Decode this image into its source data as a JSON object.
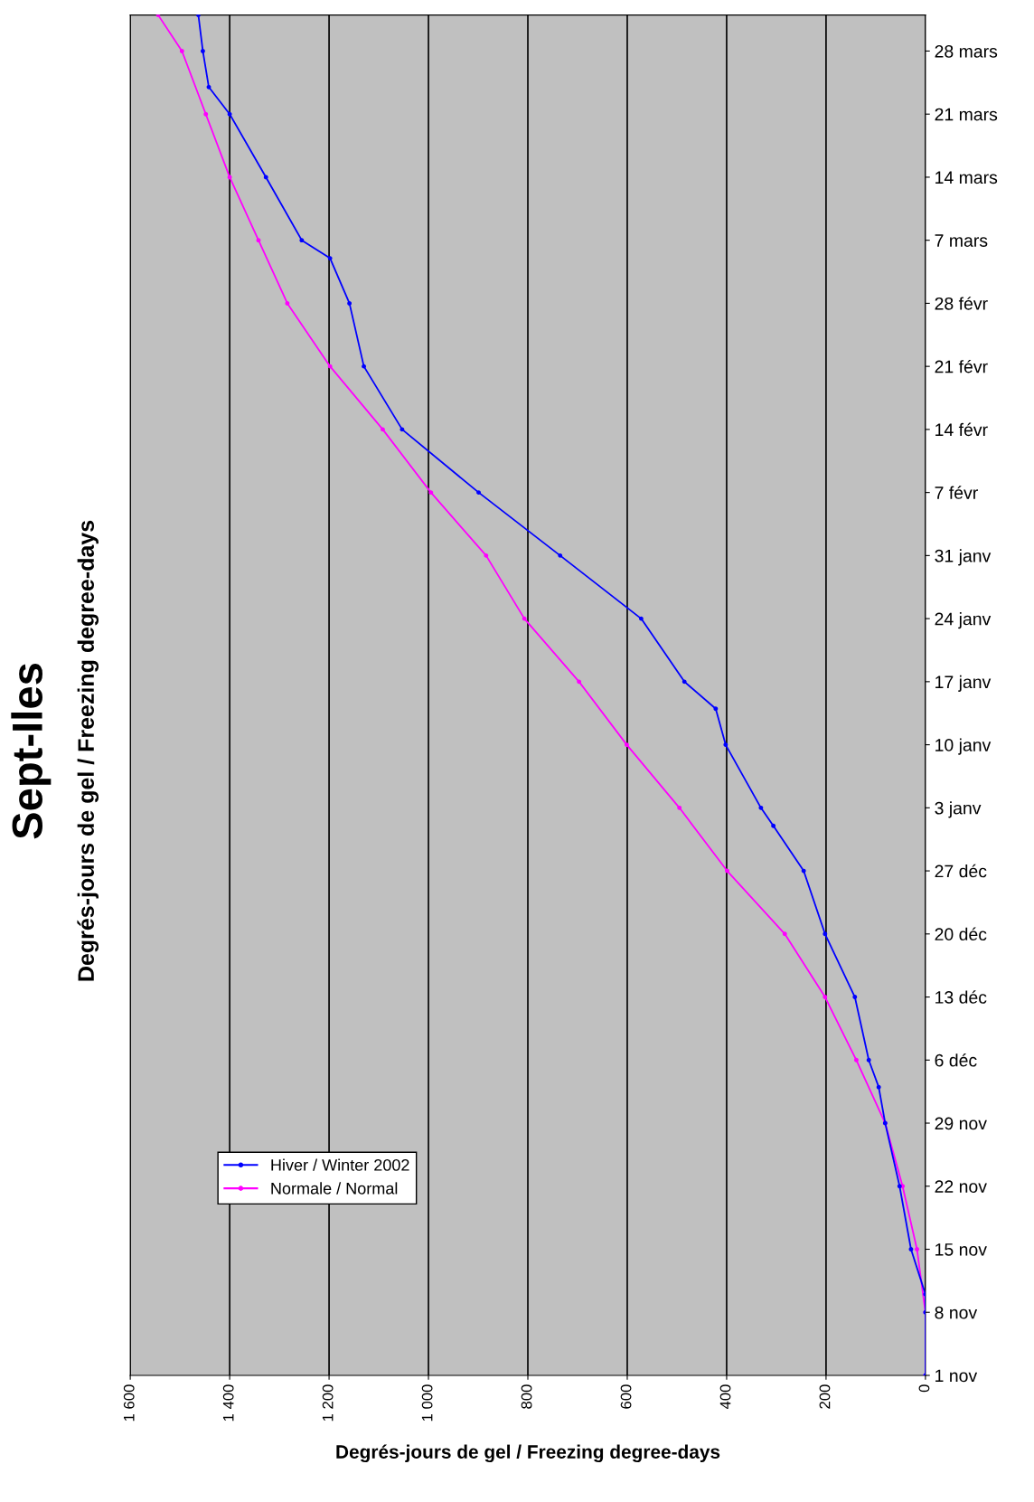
{
  "chart_data": {
    "type": "line",
    "title": "Sept-Iles",
    "subtitle": "Degrés-jours de gel / Freezing degree-days",
    "xlabel": "Degrés-jours de gel / Freezing degree-days",
    "orientation": "horizontal",
    "xlim": [
      1600,
      0
    ],
    "xticks": [
      {
        "value": 1600,
        "label": "1 600"
      },
      {
        "value": 1400,
        "label": "1 400"
      },
      {
        "value": 1200,
        "label": "1 200"
      },
      {
        "value": 1000,
        "label": "1 000"
      },
      800,
      600,
      400,
      200,
      0
    ],
    "ylim": [
      "2001-11-01",
      "2002-04-01"
    ],
    "yticks": [
      {
        "value": "2001-11-01",
        "label": "1 nov"
      },
      {
        "value": "2001-11-08",
        "label": "8 nov"
      },
      {
        "value": "2001-11-15",
        "label": "15 nov"
      },
      {
        "value": "2001-11-22",
        "label": "22 nov"
      },
      {
        "value": "2001-11-29",
        "label": "29 nov"
      },
      {
        "value": "2001-12-06",
        "label": "6 déc"
      },
      {
        "value": "2001-12-13",
        "label": "13 déc"
      },
      {
        "value": "2001-12-20",
        "label": "20 déc"
      },
      {
        "value": "2001-12-27",
        "label": "27 déc"
      },
      {
        "value": "2002-01-03",
        "label": "3 janv"
      },
      {
        "value": "2002-01-10",
        "label": "10 janv"
      },
      {
        "value": "2002-01-17",
        "label": "17 janv"
      },
      {
        "value": "2002-01-24",
        "label": "24 janv"
      },
      {
        "value": "2002-01-31",
        "label": "31 janv"
      },
      {
        "value": "2002-02-07",
        "label": "7 févr"
      },
      {
        "value": "2002-02-14",
        "label": "14 févr"
      },
      {
        "value": "2002-02-21",
        "label": "21 févr"
      },
      {
        "value": "2002-02-28",
        "label": "28 févr"
      },
      {
        "value": "2002-03-07",
        "label": "7 mars"
      },
      {
        "value": "2002-03-14",
        "label": "14 mars"
      },
      {
        "value": "2002-03-21",
        "label": "21 mars"
      },
      {
        "value": "2002-03-28",
        "label": "28 mars"
      }
    ],
    "grid": "x",
    "legend": "bottom left",
    "marker": "circle",
    "line_style": "solid",
    "series": [
      {
        "name": "Hiver / Winter 2002",
        "color": "#0000ff",
        "x": [
          "2001-11-01",
          "2001-11-08",
          "2001-11-10",
          "2001-11-15",
          "2001-11-22",
          "2001-11-29",
          "2001-12-03",
          "2001-12-06",
          "2001-12-13",
          "2001-12-20",
          "2001-12-27",
          "2002-01-01",
          "2002-01-03",
          "2002-01-10",
          "2002-01-14",
          "2002-01-17",
          "2002-01-24",
          "2002-01-31",
          "2002-02-07",
          "2002-02-14",
          "2002-02-21",
          "2002-02-28",
          "2002-03-05",
          "2002-03-07",
          "2002-03-14",
          "2002-03-21",
          "2002-03-24",
          "2002-03-28",
          "2002-04-01"
        ],
        "values": [
          0,
          0,
          0,
          29,
          52,
          81,
          94,
          114,
          142,
          202,
          245,
          306,
          331,
          402,
          422,
          485,
          572,
          735,
          899,
          1053,
          1130,
          1159,
          1198,
          1255,
          1327,
          1400,
          1442,
          1454,
          1463
        ]
      },
      {
        "name": "Normale / Normal",
        "color": "#ff00ff",
        "x": [
          "2001-11-01",
          "2001-11-08",
          "2001-11-15",
          "2001-11-22",
          "2001-11-29",
          "2001-12-06",
          "2001-12-13",
          "2001-12-20",
          "2001-12-27",
          "2002-01-03",
          "2002-01-10",
          "2002-01-17",
          "2002-01-24",
          "2002-01-31",
          "2002-02-07",
          "2002-02-14",
          "2002-02-21",
          "2002-02-28",
          "2002-03-07",
          "2002-03-14",
          "2002-03-21",
          "2002-03-28",
          "2002-04-01"
        ],
        "values": [
          0,
          0,
          17,
          46,
          81,
          139,
          202,
          283,
          399,
          495,
          601,
          697,
          807,
          884,
          995,
          1092,
          1198,
          1284,
          1342,
          1400,
          1448,
          1496,
          1544
        ]
      }
    ]
  }
}
